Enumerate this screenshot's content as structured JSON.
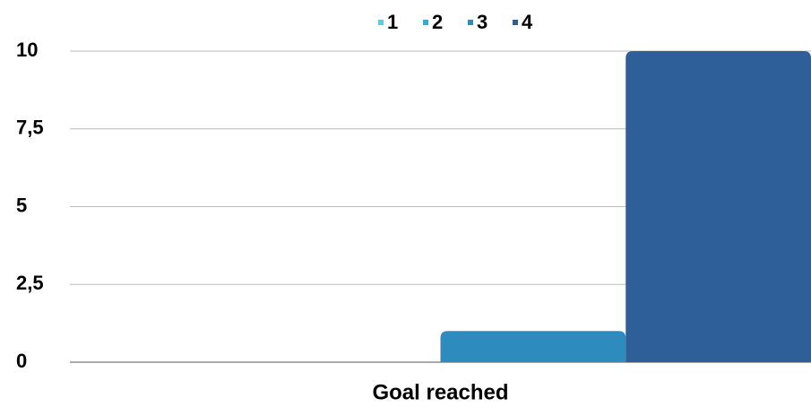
{
  "chart_data": {
    "type": "bar",
    "categories": [
      "Goal reached"
    ],
    "series": [
      {
        "name": "1",
        "color": "#62c9e3",
        "values": [
          0
        ]
      },
      {
        "name": "2",
        "color": "#35aad3",
        "values": [
          0
        ]
      },
      {
        "name": "3",
        "color": "#2e8bbd",
        "values": [
          1
        ]
      },
      {
        "name": "4",
        "color": "#2f5f98",
        "values": [
          10
        ]
      }
    ],
    "ylim": [
      0,
      10
    ],
    "yticks": [
      0,
      {
        "value": 2.5,
        "label": "2,5"
      },
      5,
      {
        "value": 7.5,
        "label": "7,5"
      },
      10
    ],
    "grid": true,
    "legend": "top"
  }
}
